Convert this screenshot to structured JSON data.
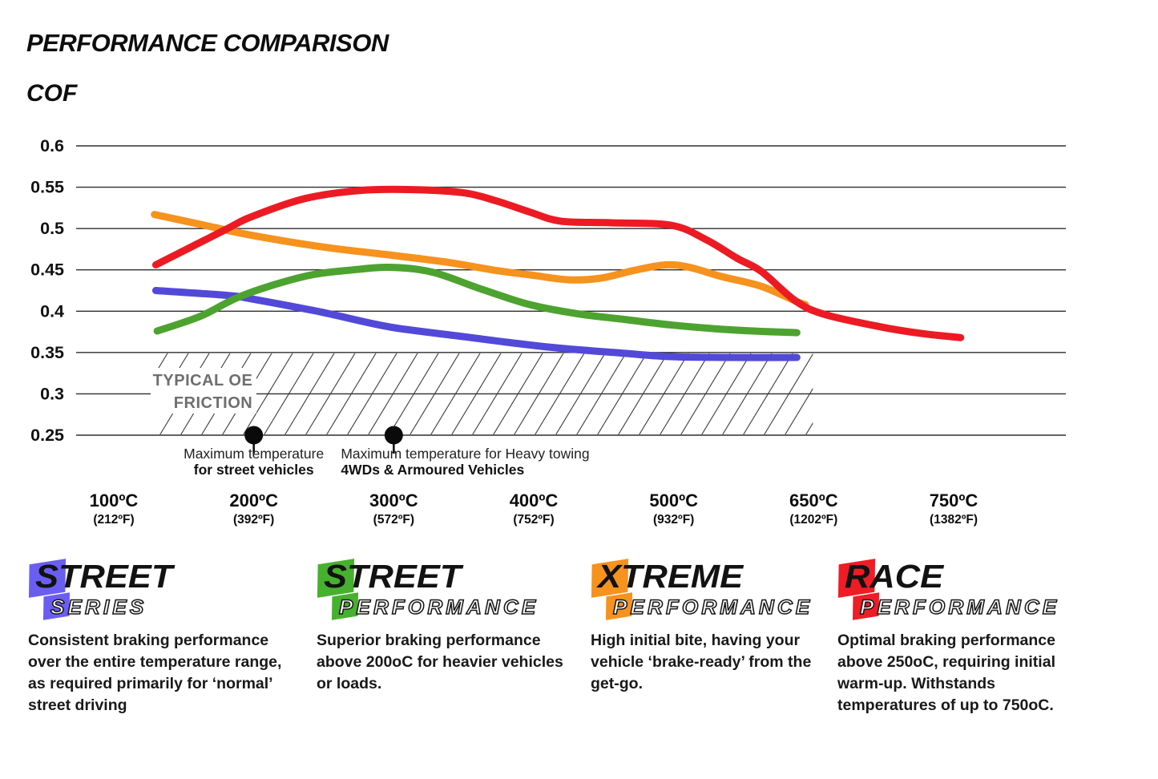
{
  "page": {
    "title": "PERFORMANCE COMPARISON",
    "y_axis_title": "COF"
  },
  "chart_data": {
    "type": "line",
    "title": "PERFORMANCE COMPARISON",
    "ylabel": "COF",
    "ylim": [
      0.25,
      0.6
    ],
    "grid": true,
    "yticks": [
      "0.6",
      "0.55",
      "0.5",
      "0.45",
      "0.4",
      "0.35",
      "0.3",
      "0.25"
    ],
    "ytick_values": [
      0.6,
      0.55,
      0.5,
      0.45,
      0.4,
      0.35,
      0.3,
      0.25
    ],
    "x_ticks": [
      {
        "temp": 100,
        "c": "100ºC",
        "f": "(212ºF)"
      },
      {
        "temp": 200,
        "c": "200ºC",
        "f": "(392ºF)"
      },
      {
        "temp": 300,
        "c": "300ºC",
        "f": "(572ºF)"
      },
      {
        "temp": 400,
        "c": "400ºC",
        "f": "(752ºF)"
      },
      {
        "temp": 500,
        "c": "500ºC",
        "f": "(932ºF)"
      },
      {
        "temp": 650,
        "c": "650ºC",
        "f": "(1202ºF)"
      },
      {
        "temp": 750,
        "c": "750ºC",
        "f": "(1382ºF)"
      }
    ],
    "oe_band": {
      "label_line1": "TYPICAL OE",
      "label_line2": "FRICTION",
      "cof_top": 0.35,
      "cof_bottom": 0.25,
      "temp_start": 130,
      "temp_end": 632
    },
    "markers": [
      {
        "temp": 200,
        "cof": 0.25,
        "align": "center",
        "line1": "Maximum temperature",
        "line2": "for street vehicles"
      },
      {
        "temp": 300,
        "cof": 0.25,
        "align": "left",
        "line1": "Maximum temperature for Heavy towing",
        "line2": "4WDs & Armoured Vehicles"
      }
    ],
    "series": [
      {
        "name": "Street Series",
        "color": "#5349d8",
        "points": [
          [
            130,
            0.425
          ],
          [
            182,
            0.419
          ],
          [
            198,
            0.415
          ],
          [
            248,
            0.399
          ],
          [
            297,
            0.381
          ],
          [
            351,
            0.369
          ],
          [
            408,
            0.357
          ],
          [
            465,
            0.349
          ],
          [
            498,
            0.345
          ],
          [
            560,
            0.344
          ],
          [
            632,
            0.344
          ]
        ]
      },
      {
        "name": "Xtreme Performance",
        "color": "#f6921e",
        "points": [
          [
            129,
            0.517
          ],
          [
            162,
            0.505
          ],
          [
            198,
            0.492
          ],
          [
            248,
            0.478
          ],
          [
            297,
            0.468
          ],
          [
            339,
            0.459
          ],
          [
            374,
            0.449
          ],
          [
            397,
            0.444
          ],
          [
            425,
            0.438
          ],
          [
            448,
            0.44
          ],
          [
            471,
            0.449
          ],
          [
            494,
            0.456
          ],
          [
            517,
            0.453
          ],
          [
            551,
            0.442
          ],
          [
            594,
            0.43
          ],
          [
            631,
            0.412
          ],
          [
            641,
            0.408
          ]
        ]
      },
      {
        "name": "Street Performance",
        "color": "#4da32f",
        "points": [
          [
            131,
            0.376
          ],
          [
            162,
            0.394
          ],
          [
            192,
            0.419
          ],
          [
            236,
            0.442
          ],
          [
            271,
            0.45
          ],
          [
            299,
            0.453
          ],
          [
            328,
            0.447
          ],
          [
            362,
            0.427
          ],
          [
            397,
            0.408
          ],
          [
            431,
            0.397
          ],
          [
            465,
            0.39
          ],
          [
            500,
            0.383
          ],
          [
            568,
            0.377
          ],
          [
            632,
            0.374
          ]
        ]
      },
      {
        "name": "Race Performance",
        "color": "#ec1b23",
        "points": [
          [
            130,
            0.456
          ],
          [
            179,
            0.498
          ],
          [
            198,
            0.514
          ],
          [
            236,
            0.536
          ],
          [
            276,
            0.546
          ],
          [
            316,
            0.547
          ],
          [
            351,
            0.543
          ],
          [
            374,
            0.533
          ],
          [
            397,
            0.52
          ],
          [
            419,
            0.509
          ],
          [
            454,
            0.507
          ],
          [
            498,
            0.504
          ],
          [
            534,
            0.487
          ],
          [
            568,
            0.464
          ],
          [
            594,
            0.448
          ],
          [
            631,
            0.412
          ],
          [
            658,
            0.396
          ],
          [
            698,
            0.381
          ],
          [
            727,
            0.373
          ],
          [
            755,
            0.368
          ]
        ]
      }
    ]
  },
  "legend": {
    "items": [
      {
        "word1": "STREET",
        "word2": "SERIES",
        "color": "#6a5ef2",
        "description": "Consistent braking performance over the entire temperature range, as required primarily for ‘normal’ street driving"
      },
      {
        "word1": "STREET",
        "word2": "PERFORMANCE",
        "color": "#47b02e",
        "description": "Superior braking performance above 200oC for heavier vehicles or loads."
      },
      {
        "word1": "XTREME",
        "word2": "PERFORMANCE",
        "color": "#f6921e",
        "description": "High initial bite, having your vehicle ‘brake-ready’ from the get-go."
      },
      {
        "word1": "RACE",
        "word2": "PERFORMANCE",
        "color": "#ee1c25",
        "description": "Optimal braking performance above 250oC, requiring initial warm-up. Withstands temperatures of up to 750oC."
      }
    ]
  }
}
